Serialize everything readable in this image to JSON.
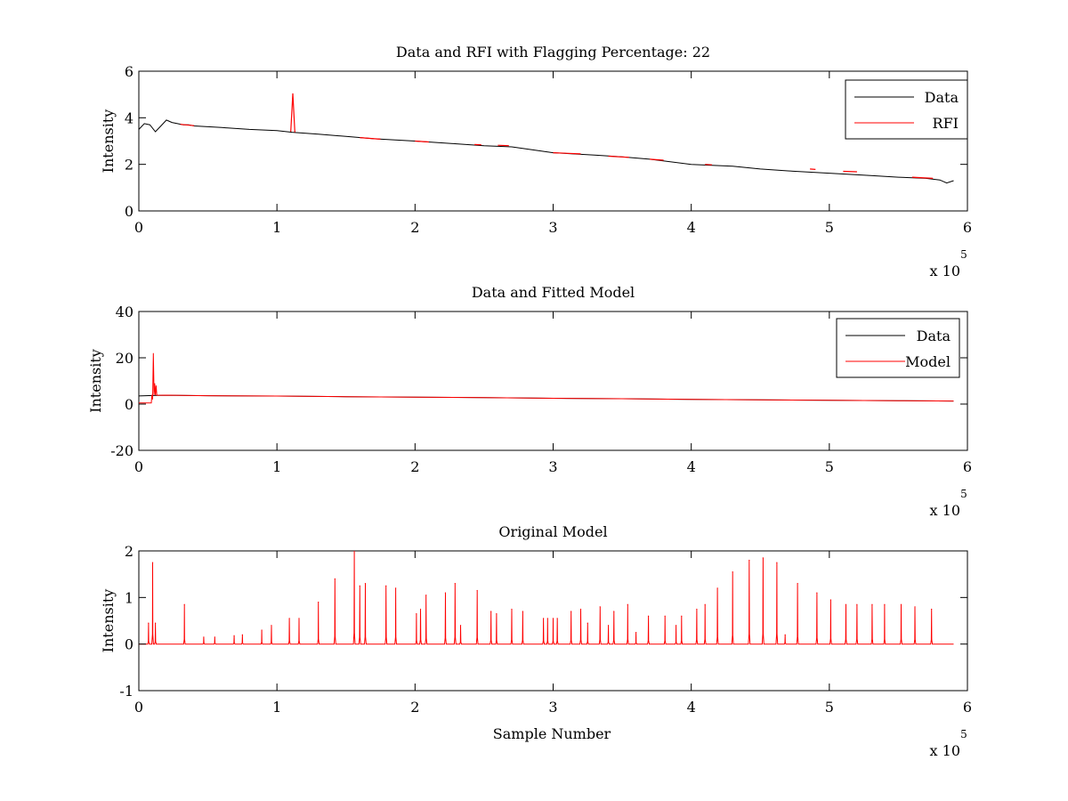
{
  "colors": {
    "data": "#000000",
    "rfi": "#ff0000",
    "model": "#ff0000",
    "background": "#ffffff",
    "axes": "#000000"
  },
  "chart_data": [
    {
      "type": "line",
      "title": "Data and RFI with Flagging Percentage: 22",
      "xlabel": "",
      "ylabel": "Intensity",
      "xlim": [
        0,
        600000
      ],
      "ylim": [
        0,
        6
      ],
      "xticks": [
        0,
        100000,
        200000,
        300000,
        400000,
        500000,
        600000
      ],
      "xtick_labels": [
        "0",
        "1",
        "2",
        "3",
        "4",
        "5",
        "6"
      ],
      "yticks": [
        0,
        2,
        4,
        6
      ],
      "ytick_labels": [
        "0",
        "2",
        "4",
        "6"
      ],
      "x_exponent_label": {
        "base": "x 10",
        "exponent": "5"
      },
      "grid": false,
      "legend": {
        "position": "top-right",
        "entries": [
          "Data",
          "RFI"
        ]
      },
      "series": [
        {
          "name": "Data",
          "color": "#000000",
          "x": [
            0,
            4000,
            8000,
            12000,
            16000,
            20000,
            24000,
            28000,
            32000,
            36000,
            40000,
            60000,
            80000,
            100000,
            111000,
            130000,
            150000,
            170000,
            200000,
            230000,
            250000,
            270000,
            300000,
            330000,
            350000,
            370000,
            400000,
            430000,
            450000,
            470000,
            500000,
            530000,
            550000,
            570000,
            580000,
            585000,
            590000
          ],
          "y": [
            3.5,
            3.75,
            3.7,
            3.4,
            3.65,
            3.9,
            3.8,
            3.75,
            3.7,
            3.7,
            3.65,
            3.58,
            3.5,
            3.45,
            3.38,
            3.3,
            3.2,
            3.1,
            3.0,
            2.88,
            2.8,
            2.75,
            2.5,
            2.4,
            2.32,
            2.22,
            2.0,
            1.92,
            1.8,
            1.72,
            1.62,
            1.52,
            1.45,
            1.4,
            1.33,
            1.2,
            1.3
          ]
        },
        {
          "name": "RFI",
          "color": "#ff0000",
          "segments": [
            {
              "x": [
                30000,
                40000
              ],
              "y": [
                3.72,
                3.66
              ]
            },
            {
              "x": [
                110000,
                111500,
                113000
              ],
              "y": [
                3.4,
                5.05,
                3.38
              ]
            },
            {
              "x": [
                160000,
                175000
              ],
              "y": [
                3.15,
                3.08
              ]
            },
            {
              "x": [
                200000,
                210000
              ],
              "y": [
                3.0,
                2.96
              ]
            },
            {
              "x": [
                243000,
                248000
              ],
              "y": [
                2.85,
                2.84
              ]
            },
            {
              "x": [
                260000,
                268000
              ],
              "y": [
                2.82,
                2.8
              ]
            },
            {
              "x": [
                300000,
                320000
              ],
              "y": [
                2.5,
                2.45
              ]
            },
            {
              "x": [
                340000,
                355000
              ],
              "y": [
                2.35,
                2.3
              ]
            },
            {
              "x": [
                370000,
                380000
              ],
              "y": [
                2.22,
                2.18
              ]
            },
            {
              "x": [
                410000,
                415000
              ],
              "y": [
                2.0,
                1.98
              ]
            },
            {
              "x": [
                486000,
                490000
              ],
              "y": [
                1.8,
                1.78
              ]
            },
            {
              "x": [
                510000,
                520000
              ],
              "y": [
                1.7,
                1.68
              ]
            },
            {
              "x": [
                560000,
                575000
              ],
              "y": [
                1.45,
                1.4
              ]
            }
          ]
        }
      ]
    },
    {
      "type": "line",
      "title": "Data and Fitted Model",
      "xlabel": "",
      "ylabel": "Intensity",
      "xlim": [
        0,
        600000
      ],
      "ylim": [
        -20,
        40
      ],
      "xticks": [
        0,
        100000,
        200000,
        300000,
        400000,
        500000,
        600000
      ],
      "xtick_labels": [
        "0",
        "1",
        "2",
        "3",
        "4",
        "5",
        "6"
      ],
      "yticks": [
        -20,
        0,
        20,
        40
      ],
      "ytick_labels": [
        "-20",
        "0",
        "20",
        "40"
      ],
      "x_exponent_label": {
        "base": "x 10",
        "exponent": "5"
      },
      "grid": false,
      "legend": {
        "position": "top-right",
        "entries": [
          "Data",
          "Model"
        ]
      },
      "series": [
        {
          "name": "Data",
          "color": "#000000",
          "x": [
            0,
            10000,
            20000,
            50000,
            100000,
            150000,
            200000,
            250000,
            300000,
            350000,
            400000,
            450000,
            500000,
            550000,
            590000
          ],
          "y": [
            3.5,
            3.7,
            3.8,
            3.6,
            3.45,
            3.2,
            3.0,
            2.8,
            2.5,
            2.3,
            2.0,
            1.8,
            1.62,
            1.45,
            1.3
          ]
        },
        {
          "name": "Model",
          "color": "#ff0000",
          "x": [
            0,
            9000,
            9500,
            10000,
            10500,
            11000,
            11500,
            12000,
            12500,
            13000,
            15000,
            20000,
            50000,
            100000,
            150000,
            200000,
            250000,
            300000,
            350000,
            400000,
            450000,
            500000,
            550000,
            590000
          ],
          "y": [
            0.5,
            0.5,
            4,
            2,
            22,
            4,
            9,
            3.8,
            8,
            3.8,
            3.8,
            3.85,
            3.6,
            3.45,
            3.2,
            3.0,
            2.8,
            2.5,
            2.3,
            2.0,
            1.8,
            1.62,
            1.45,
            1.3
          ]
        }
      ]
    },
    {
      "type": "line",
      "title": "Original Model",
      "xlabel": "Sample Number",
      "ylabel": "Intensity",
      "xlim": [
        0,
        600000
      ],
      "ylim": [
        -1,
        2
      ],
      "xticks": [
        0,
        100000,
        200000,
        300000,
        400000,
        500000,
        600000
      ],
      "xtick_labels": [
        "0",
        "1",
        "2",
        "3",
        "4",
        "5",
        "6"
      ],
      "yticks": [
        -1,
        0,
        1,
        2
      ],
      "ytick_labels": [
        "-1",
        "0",
        "1",
        "2"
      ],
      "x_exponent_label": {
        "base": "x 10",
        "exponent": "5"
      },
      "grid": false,
      "legend": null,
      "series": [
        {
          "name": "",
          "color": "#ff0000",
          "baseline": 0,
          "x_end": 590000,
          "peaks": [
            [
              7000,
              0.45
            ],
            [
              10000,
              1.75
            ],
            [
              12000,
              0.45
            ],
            [
              33000,
              0.85
            ],
            [
              47000,
              0.15
            ],
            [
              55000,
              0.15
            ],
            [
              69000,
              0.18
            ],
            [
              75000,
              0.2
            ],
            [
              89000,
              0.3
            ],
            [
              96000,
              0.4
            ],
            [
              109000,
              0.55
            ],
            [
              116000,
              0.55
            ],
            [
              130000,
              0.9
            ],
            [
              142000,
              1.4
            ],
            [
              156000,
              2.0
            ],
            [
              160000,
              1.25
            ],
            [
              164000,
              1.3
            ],
            [
              179000,
              1.25
            ],
            [
              186000,
              1.2
            ],
            [
              201000,
              0.65
            ],
            [
              204000,
              0.75
            ],
            [
              208000,
              1.05
            ],
            [
              222000,
              1.1
            ],
            [
              229000,
              1.3
            ],
            [
              233000,
              0.4
            ],
            [
              245000,
              1.15
            ],
            [
              255000,
              0.7
            ],
            [
              259000,
              0.65
            ],
            [
              270000,
              0.75
            ],
            [
              278000,
              0.7
            ],
            [
              293000,
              0.55
            ],
            [
              296000,
              0.55
            ],
            [
              300000,
              0.55
            ],
            [
              303000,
              0.55
            ],
            [
              313000,
              0.7
            ],
            [
              320000,
              0.75
            ],
            [
              325000,
              0.45
            ],
            [
              334000,
              0.8
            ],
            [
              340000,
              0.4
            ],
            [
              344000,
              0.7
            ],
            [
              354000,
              0.85
            ],
            [
              360000,
              0.25
            ],
            [
              369000,
              0.6
            ],
            [
              381000,
              0.6
            ],
            [
              389000,
              0.4
            ],
            [
              393000,
              0.6
            ],
            [
              404000,
              0.75
            ],
            [
              410000,
              0.85
            ],
            [
              419000,
              1.2
            ],
            [
              430000,
              1.55
            ],
            [
              442000,
              1.8
            ],
            [
              452000,
              1.85
            ],
            [
              462000,
              1.75
            ],
            [
              468000,
              0.2
            ],
            [
              477000,
              1.3
            ],
            [
              491000,
              1.1
            ],
            [
              501000,
              0.95
            ],
            [
              512000,
              0.85
            ],
            [
              520000,
              0.85
            ],
            [
              531000,
              0.85
            ],
            [
              540000,
              0.85
            ],
            [
              552000,
              0.85
            ],
            [
              562000,
              0.8
            ],
            [
              574000,
              0.75
            ]
          ]
        }
      ]
    }
  ]
}
